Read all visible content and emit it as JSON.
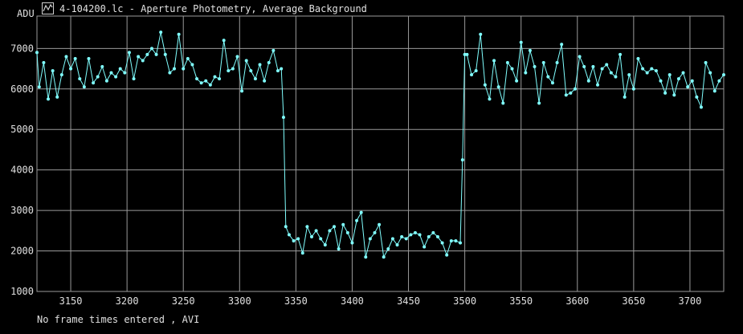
{
  "window": {
    "title": "4-104200.lc - Aperture Photometry, Average Background",
    "icon": "chart-window-icon"
  },
  "footer_status": "No frame times entered , AVI",
  "colors": {
    "background": "#000000",
    "grid": "#9a9a9a",
    "series": "#80ffff",
    "text": "#e0e0e0"
  },
  "chart_data": {
    "type": "line",
    "title": "4-104200.lc - Aperture Photometry, Average Background",
    "xlabel": "",
    "ylabel": "ADU",
    "xlim": [
      3120,
      3730
    ],
    "ylim": [
      1000,
      7800
    ],
    "xticks": [
      3150,
      3200,
      3250,
      3300,
      3350,
      3400,
      3450,
      3500,
      3550,
      3600,
      3650,
      3700
    ],
    "yticks": [
      1000,
      2000,
      3000,
      4000,
      5000,
      6000,
      7000
    ],
    "grid": true,
    "marker": "dot",
    "series": [
      {
        "x": [
          3120,
          3122,
          3126,
          3130,
          3134,
          3138,
          3142,
          3146,
          3150,
          3154,
          3158,
          3162,
          3166,
          3170,
          3174,
          3178,
          3182,
          3186,
          3190,
          3194,
          3198,
          3202,
          3206,
          3210,
          3214,
          3218,
          3222,
          3226,
          3230,
          3234,
          3238,
          3242,
          3246,
          3250,
          3254,
          3258,
          3262,
          3266,
          3270,
          3274,
          3278,
          3282,
          3286,
          3290,
          3294,
          3298,
          3302,
          3306,
          3310,
          3314,
          3318,
          3322,
          3326,
          3330,
          3334,
          3337,
          3339,
          3341,
          3344,
          3348,
          3352,
          3356,
          3360,
          3364,
          3368,
          3372,
          3376,
          3380,
          3384,
          3388,
          3392,
          3396,
          3400,
          3404,
          3408,
          3412,
          3416,
          3420,
          3424,
          3428,
          3432,
          3436,
          3440,
          3444,
          3448,
          3452,
          3456,
          3460,
          3464,
          3468,
          3472,
          3476,
          3480,
          3484,
          3488,
          3492,
          3496,
          3498,
          3500,
          3502,
          3506,
          3510,
          3514,
          3518,
          3522,
          3526,
          3530,
          3534,
          3538,
          3542,
          3546,
          3550,
          3554,
          3558,
          3562,
          3566,
          3570,
          3574,
          3578,
          3582,
          3586,
          3590,
          3594,
          3598,
          3602,
          3606,
          3610,
          3614,
          3618,
          3622,
          3626,
          3630,
          3634,
          3638,
          3642,
          3646,
          3650,
          3654,
          3658,
          3662,
          3666,
          3670,
          3674,
          3678,
          3682,
          3686,
          3690,
          3694,
          3698,
          3702,
          3706,
          3710,
          3714,
          3718,
          3722,
          3726,
          3730
        ],
        "y": [
          6900,
          6050,
          6650,
          5750,
          6450,
          5800,
          6350,
          6800,
          6500,
          6750,
          6250,
          6050,
          6750,
          6150,
          6300,
          6550,
          6200,
          6400,
          6300,
          6500,
          6400,
          6900,
          6250,
          6800,
          6700,
          6850,
          7000,
          6850,
          7400,
          6850,
          6400,
          6500,
          7350,
          6500,
          6750,
          6600,
          6250,
          6150,
          6200,
          6100,
          6300,
          6250,
          7200,
          6450,
          6500,
          6800,
          5950,
          6700,
          6450,
          6250,
          6600,
          6200,
          6650,
          6950,
          6450,
          6500,
          5300,
          2600,
          2400,
          2250,
          2300,
          1950,
          2600,
          2350,
          2500,
          2300,
          2150,
          2500,
          2600,
          2050,
          2650,
          2450,
          2200,
          2750,
          2950,
          1850,
          2300,
          2450,
          2650,
          1850,
          2050,
          2300,
          2150,
          2350,
          2300,
          2400,
          2450,
          2400,
          2100,
          2350,
          2450,
          2350,
          2200,
          1900,
          2250,
          2250,
          2200,
          4250,
          6850,
          6850,
          6350,
          6450,
          7350,
          6100,
          5750,
          6700,
          6050,
          5650,
          6650,
          6500,
          6200,
          7150,
          6400,
          6950,
          6550,
          5650,
          6650,
          6300,
          6150,
          6650,
          7100,
          5850,
          5900,
          6000,
          6800,
          6550,
          6200,
          6550,
          6100,
          6500,
          6600,
          6400,
          6300,
          6850,
          5800,
          6350,
          6000,
          6750,
          6500,
          6400,
          6500,
          6450,
          6200,
          5900,
          6350,
          5850,
          6250,
          6400,
          6050,
          6200,
          5800,
          5550,
          6650,
          6400,
          5950,
          6200,
          6350
        ]
      }
    ]
  }
}
